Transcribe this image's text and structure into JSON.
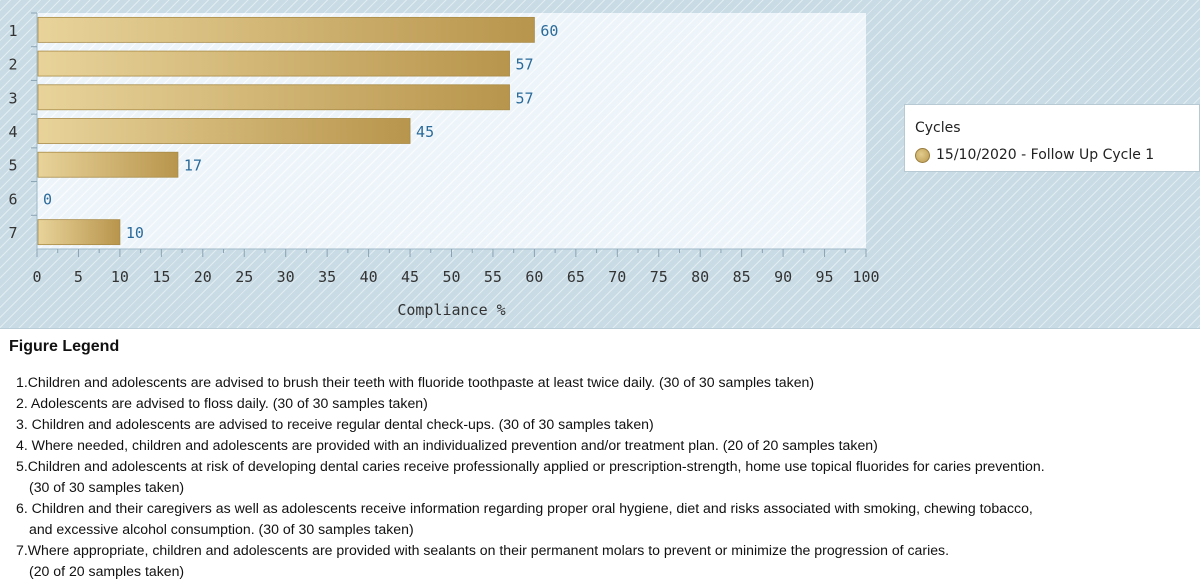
{
  "chart_data": {
    "type": "bar",
    "orientation": "horizontal",
    "categories": [
      "1",
      "2",
      "3",
      "4",
      "5",
      "6",
      "7"
    ],
    "series": [
      {
        "name": "15/10/2020 - Follow Up Cycle 1",
        "values": [
          60,
          57,
          57,
          45,
          17,
          0,
          10
        ]
      }
    ],
    "data_labels": [
      "60",
      "57",
      "57",
      "45",
      "17",
      "0",
      "10"
    ],
    "xlabel": "Compliance %",
    "ylabel": "",
    "xlim": [
      0,
      100
    ],
    "xticks": [
      "0",
      "5",
      "10",
      "15",
      "20",
      "25",
      "30",
      "35",
      "40",
      "45",
      "50",
      "55",
      "60",
      "65",
      "70",
      "75",
      "80",
      "85",
      "90",
      "95",
      "100"
    ],
    "xtick_values": [
      0,
      5,
      10,
      15,
      20,
      25,
      30,
      35,
      40,
      45,
      50,
      55,
      60,
      65,
      70,
      75,
      80,
      85,
      90,
      95,
      100
    ],
    "grid": false,
    "legend": {
      "title": "Cycles",
      "placement": "right"
    },
    "colors": {
      "bar": "#c8a45c",
      "bar_light": "#e3cc8d",
      "label": "#2a6a9a",
      "background": "#c9dce6",
      "plot": "#eef5fa"
    }
  },
  "figure_legend": {
    "heading": "Figure Legend",
    "items": [
      {
        "text": "1.Children and adolescents are advised to brush their teeth with fluoride toothpaste at least twice daily. (30 of 30 samples taken)",
        "cont": ""
      },
      {
        "text": "2. Adolescents are advised to floss daily. (30 of 30 samples taken)",
        "cont": ""
      },
      {
        "text": "3. Children and adolescents are advised to receive regular dental check-ups. (30 of 30 samples taken)",
        "cont": ""
      },
      {
        "text": "4. Where needed, children and adolescents are provided with an individualized prevention and/or treatment plan. (20 of 20 samples taken)",
        "cont": ""
      },
      {
        "text": "5.Children and adolescents at risk of developing dental caries receive professionally applied or prescription-strength, home use topical fluorides for caries prevention.",
        "cont": "(30 of 30 samples taken)"
      },
      {
        "text": "6. Children and their caregivers as well as adolescents receive information regarding proper oral hygiene, diet and risks associated with smoking, chewing tobacco,",
        "cont": "and excessive alcohol consumption. (30 of 30 samples taken)"
      },
      {
        "text": "7.Where appropriate, children and adolescents are provided with sealants on their permanent molars to prevent or minimize the progression of caries.",
        "cont": "(20 of 20 samples taken)"
      }
    ]
  }
}
